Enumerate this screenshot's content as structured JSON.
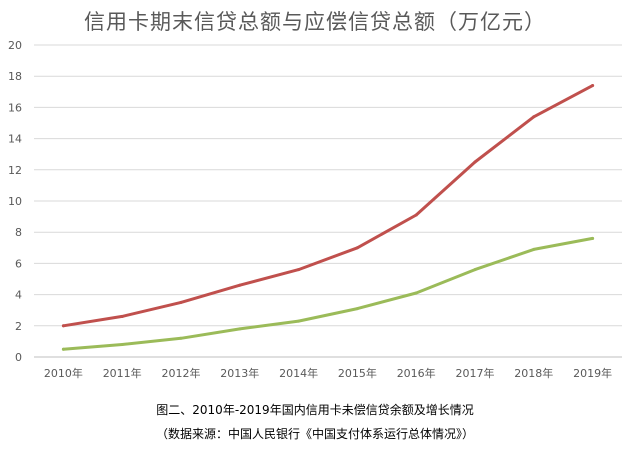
{
  "chart_data": {
    "type": "line",
    "title": "信用卡期末信贷总额与应偿信贷总额（万亿元）",
    "categories": [
      "2010年",
      "2011年",
      "2012年",
      "2013年",
      "2014年",
      "2015年",
      "2016年",
      "2017年",
      "2018年",
      "2019年"
    ],
    "ylim": [
      0,
      20
    ],
    "yticks": [
      0,
      2,
      4,
      6,
      8,
      10,
      12,
      14,
      16,
      18,
      20
    ],
    "grid": true,
    "legend": "none",
    "series": [
      {
        "color": "#C0504D",
        "values": [
          2.0,
          2.6,
          3.5,
          4.6,
          5.6,
          7.0,
          9.1,
          12.5,
          15.4,
          17.4
        ]
      },
      {
        "color": "#9BBB59",
        "values": [
          0.5,
          0.8,
          1.2,
          1.8,
          2.3,
          3.1,
          4.1,
          5.6,
          6.9,
          7.6
        ]
      }
    ]
  },
  "caption": {
    "line1": "图二、2010年-2019年国内信用卡未偿信贷余额及增长情况",
    "line2": "（数据来源：中国人民银行《中国支付体系运行总体情况》）"
  }
}
